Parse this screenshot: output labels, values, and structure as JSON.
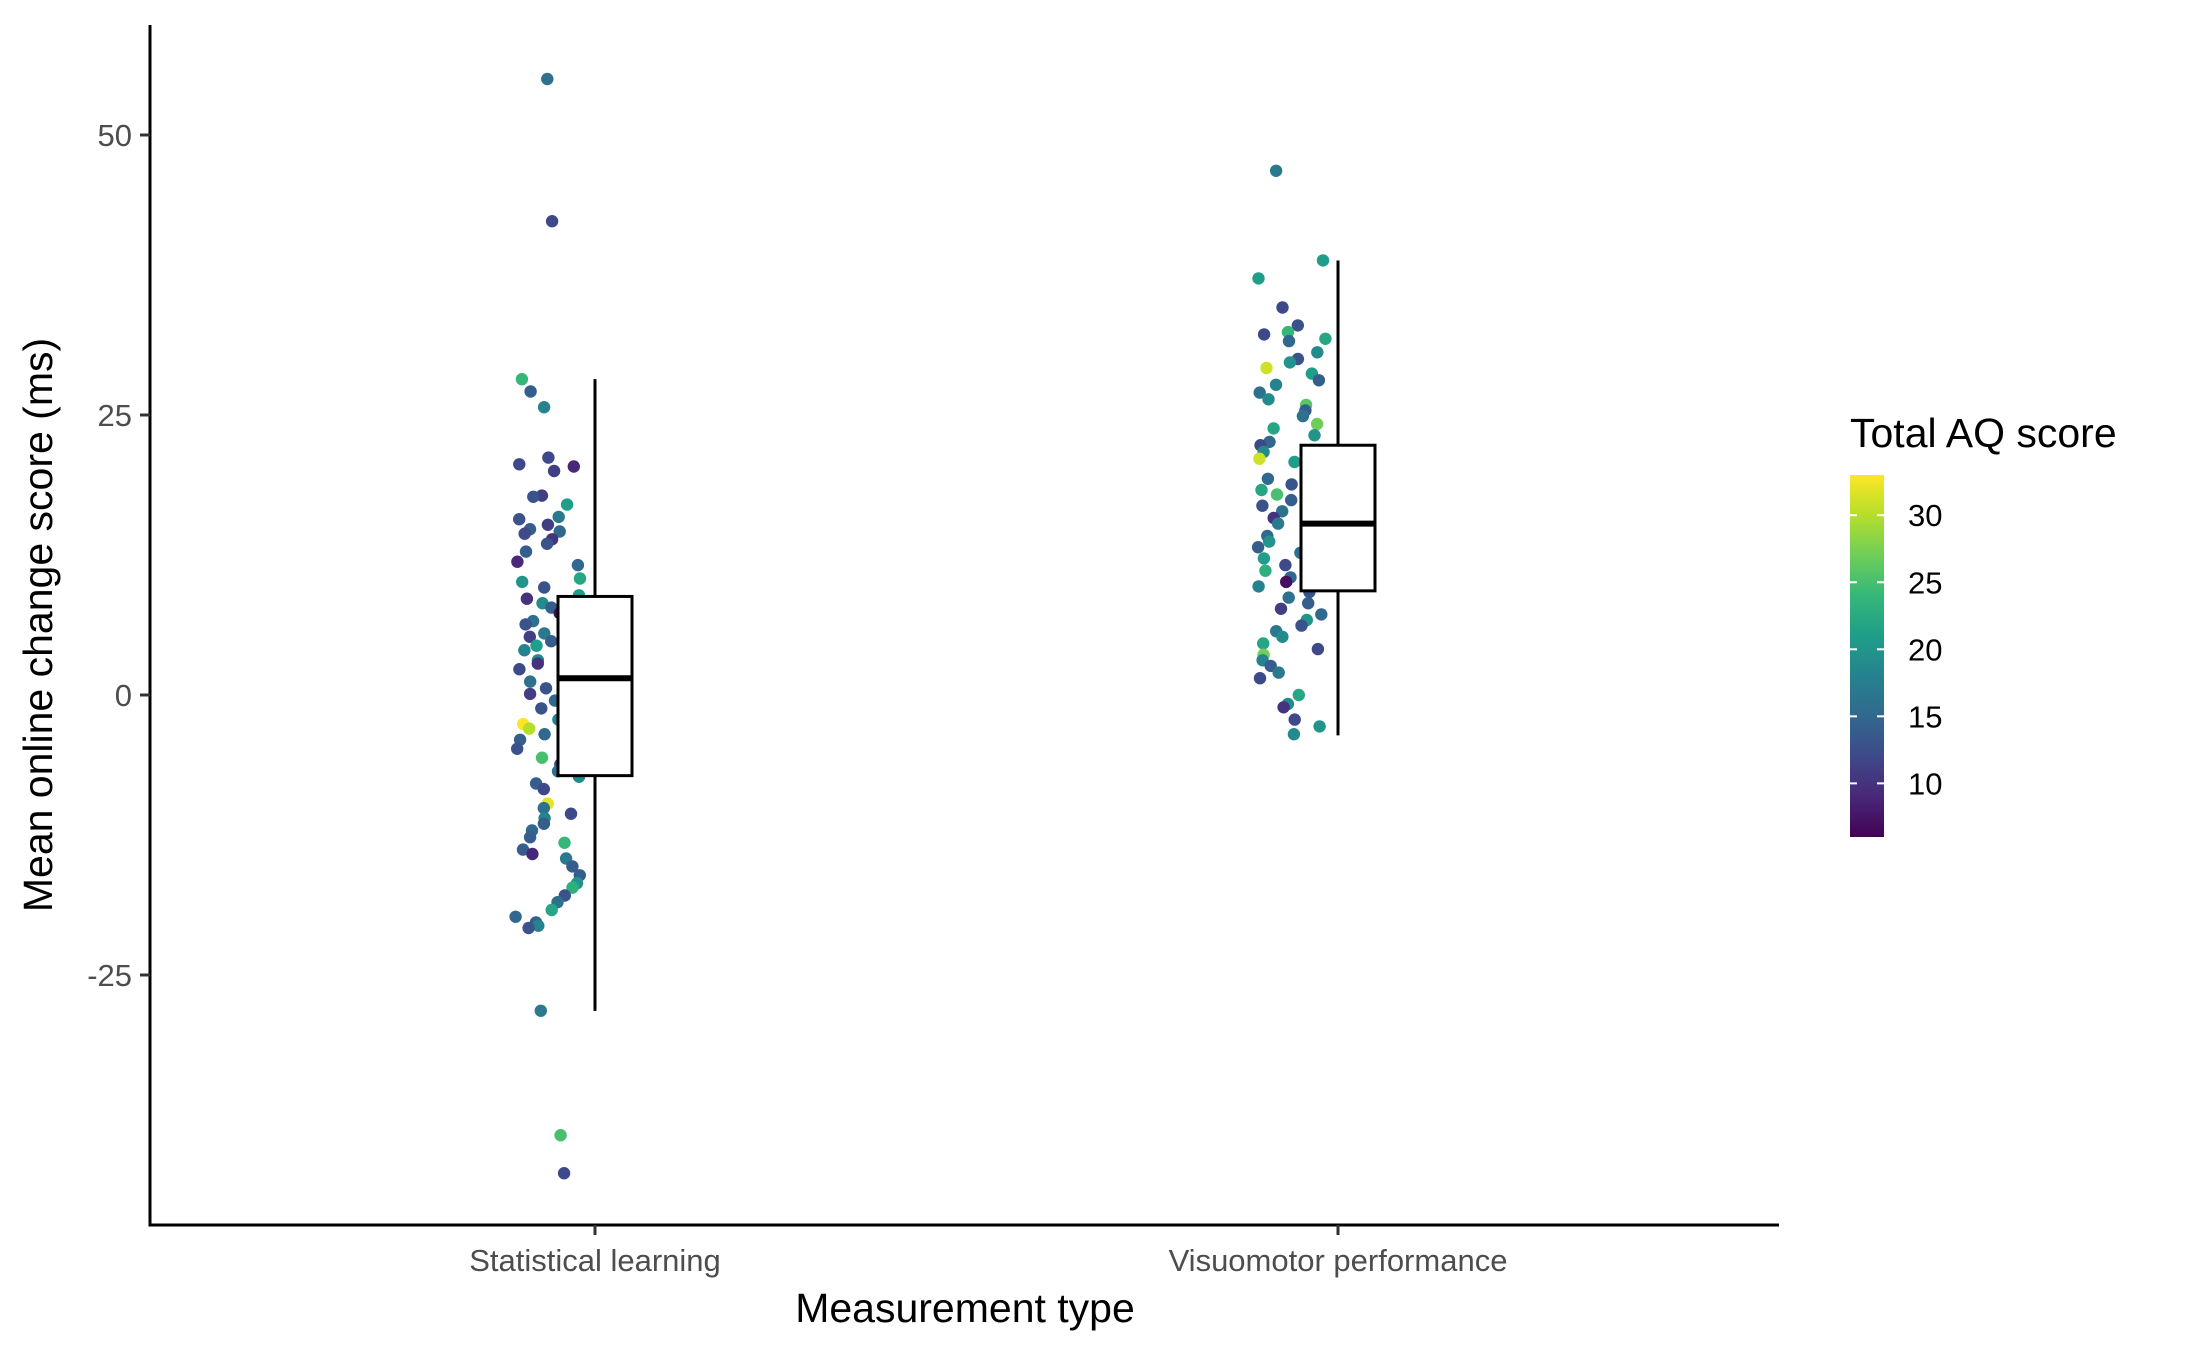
{
  "chart_data": {
    "type": "scatter",
    "subtype": "jittered points with boxplots",
    "title": "",
    "xlabel": "Measurement type",
    "ylabel": "Mean online change score (ms)",
    "ylim": [
      -47.5,
      60
    ],
    "yticks": [
      -25,
      0,
      25,
      50
    ],
    "ytick_labels": [
      "-25",
      "0",
      "25",
      "50"
    ],
    "categories": [
      "Statistical learning",
      "Visuomotor performance"
    ],
    "grid": false,
    "legend": {
      "title": "Total AQ score",
      "type": "colorbar",
      "placement": "right",
      "range": [
        6,
        33
      ],
      "ticks": [
        10,
        15,
        20,
        25,
        30
      ],
      "tick_labels": [
        "10",
        "15",
        "20",
        "25",
        "30"
      ],
      "palette": [
        "#440154",
        "#482878",
        "#3e4989",
        "#31688e",
        "#26828e",
        "#1f9e89",
        "#35b779",
        "#6ece58",
        "#b5de2b",
        "#fde725"
      ]
    },
    "boxplots": [
      {
        "category": "Statistical learning",
        "whisker_low": -28.2,
        "q1": -7.2,
        "median": 1.5,
        "q3": 8.8,
        "whisker_high": 28.2
      },
      {
        "category": "Visuomotor performance",
        "whisker_low": -3.6,
        "q1": 9.3,
        "median": 15.3,
        "q3": 22.3,
        "whisker_high": 38.8
      }
    ],
    "series": [
      {
        "category": "Statistical learning",
        "points": [
          [
            55.0,
            16
          ],
          [
            42.3,
            12
          ],
          [
            28.2,
            24
          ],
          [
            27.1,
            14
          ],
          [
            25.7,
            18
          ],
          [
            21.2,
            12
          ],
          [
            20.6,
            12
          ],
          [
            20.4,
            9
          ],
          [
            20.0,
            11
          ],
          [
            17.8,
            11
          ],
          [
            17.7,
            13
          ],
          [
            17.0,
            21
          ],
          [
            15.9,
            17
          ],
          [
            15.7,
            13
          ],
          [
            15.2,
            11
          ],
          [
            14.8,
            14
          ],
          [
            14.6,
            15
          ],
          [
            14.4,
            12
          ],
          [
            13.9,
            10
          ],
          [
            13.5,
            13
          ],
          [
            12.8,
            14
          ],
          [
            11.9,
            9
          ],
          [
            11.6,
            15
          ],
          [
            10.4,
            22
          ],
          [
            10.1,
            20
          ],
          [
            9.6,
            13
          ],
          [
            8.9,
            21
          ],
          [
            8.6,
            10
          ],
          [
            8.2,
            19
          ],
          [
            7.8,
            14
          ],
          [
            7.3,
            7
          ],
          [
            6.6,
            16
          ],
          [
            6.3,
            13
          ],
          [
            5.9,
            25
          ],
          [
            5.5,
            17
          ],
          [
            5.2,
            11
          ],
          [
            4.8,
            14
          ],
          [
            4.4,
            21
          ],
          [
            4.0,
            18
          ],
          [
            3.6,
            15
          ],
          [
            3.1,
            19
          ],
          [
            2.8,
            10
          ],
          [
            2.3,
            12
          ],
          [
            1.7,
            14
          ],
          [
            1.2,
            16
          ],
          [
            0.9,
            22
          ],
          [
            0.6,
            13
          ],
          [
            0.1,
            11
          ],
          [
            -0.5,
            15
          ],
          [
            -1.2,
            13
          ],
          [
            -1.8,
            21
          ],
          [
            -2.2,
            18
          ],
          [
            -2.6,
            33
          ],
          [
            -3.0,
            30
          ],
          [
            -3.5,
            15
          ],
          [
            -4.0,
            14
          ],
          [
            -4.8,
            13
          ],
          [
            -5.6,
            25
          ],
          [
            -6.2,
            12
          ],
          [
            -6.8,
            16
          ],
          [
            -7.3,
            19
          ],
          [
            -7.9,
            14
          ],
          [
            -8.4,
            12
          ],
          [
            -9.7,
            32
          ],
          [
            -10.1,
            16
          ],
          [
            -10.6,
            12
          ],
          [
            -11.0,
            18
          ],
          [
            -11.5,
            14
          ],
          [
            -12.1,
            15
          ],
          [
            -12.7,
            14
          ],
          [
            -13.2,
            24
          ],
          [
            -13.8,
            14
          ],
          [
            -14.2,
            9
          ],
          [
            -14.6,
            17
          ],
          [
            -15.3,
            14
          ],
          [
            -16.1,
            14
          ],
          [
            -16.8,
            20
          ],
          [
            -17.2,
            23
          ],
          [
            -17.9,
            13
          ],
          [
            -18.5,
            16
          ],
          [
            -19.2,
            22
          ],
          [
            -19.8,
            15
          ],
          [
            -20.3,
            14
          ],
          [
            -20.6,
            18
          ],
          [
            -20.8,
            13
          ],
          [
            -28.2,
            17
          ],
          [
            -39.3,
            25
          ],
          [
            -42.7,
            12
          ]
        ]
      },
      {
        "category": "Visuomotor performance",
        "points": [
          [
            46.8,
            17
          ],
          [
            38.8,
            21
          ],
          [
            37.2,
            21
          ],
          [
            34.6,
            12
          ],
          [
            33.0,
            13
          ],
          [
            32.4,
            24
          ],
          [
            32.2,
            12
          ],
          [
            31.8,
            22
          ],
          [
            31.6,
            15
          ],
          [
            30.6,
            19
          ],
          [
            30.0,
            13
          ],
          [
            29.7,
            20
          ],
          [
            29.2,
            31
          ],
          [
            28.7,
            21
          ],
          [
            28.1,
            14
          ],
          [
            27.7,
            18
          ],
          [
            27.0,
            16
          ],
          [
            26.4,
            19
          ],
          [
            25.9,
            26
          ],
          [
            25.4,
            14
          ],
          [
            24.9,
            16
          ],
          [
            24.2,
            27
          ],
          [
            23.8,
            22
          ],
          [
            23.2,
            20
          ],
          [
            22.6,
            15
          ],
          [
            22.3,
            12
          ],
          [
            21.7,
            19
          ],
          [
            21.1,
            31
          ],
          [
            20.8,
            21
          ],
          [
            20.3,
            19
          ],
          [
            19.8,
            10
          ],
          [
            19.3,
            15
          ],
          [
            18.8,
            13
          ],
          [
            18.3,
            22
          ],
          [
            17.9,
            25
          ],
          [
            17.4,
            14
          ],
          [
            16.9,
            13
          ],
          [
            16.4,
            16
          ],
          [
            15.8,
            10
          ],
          [
            15.3,
            17
          ],
          [
            14.8,
            11
          ],
          [
            14.2,
            15
          ],
          [
            13.7,
            20
          ],
          [
            13.2,
            14
          ],
          [
            12.7,
            16
          ],
          [
            12.2,
            21
          ],
          [
            11.6,
            12
          ],
          [
            11.1,
            23
          ],
          [
            10.5,
            15
          ],
          [
            10.1,
            7
          ],
          [
            9.7,
            18
          ],
          [
            9.2,
            13
          ],
          [
            8.7,
            16
          ],
          [
            8.2,
            14
          ],
          [
            7.7,
            11
          ],
          [
            7.2,
            15
          ],
          [
            6.7,
            20
          ],
          [
            6.2,
            13
          ],
          [
            5.7,
            17
          ],
          [
            5.2,
            19
          ],
          [
            4.6,
            22
          ],
          [
            4.1,
            12
          ],
          [
            3.6,
            27
          ],
          [
            3.1,
            18
          ],
          [
            2.6,
            14
          ],
          [
            2.0,
            17
          ],
          [
            1.5,
            12
          ],
          [
            0.0,
            22
          ],
          [
            -0.8,
            19
          ],
          [
            -1.1,
            10
          ],
          [
            -2.2,
            12
          ],
          [
            -2.8,
            20
          ],
          [
            -3.5,
            19
          ]
        ]
      }
    ]
  }
}
